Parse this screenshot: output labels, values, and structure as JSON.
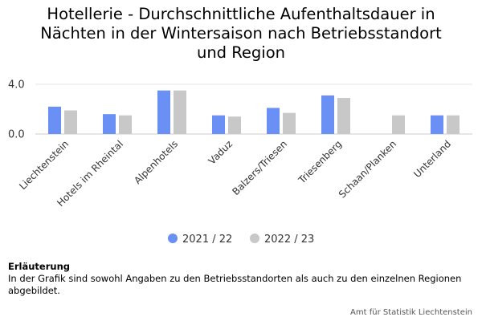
{
  "chart_data": {
    "type": "bar",
    "title_lines": [
      "Hotellerie - Durchschnittliche Aufenthaltsdauer in",
      "Nächten in der Wintersaison nach Betriebsstandort",
      "und Region"
    ],
    "categories": [
      "Liechtenstein",
      "Hotels im Rheintal",
      "Alpenhotels",
      "Vaduz",
      "Balzers/Triesen",
      "Triesenberg",
      "Schaan/Planken",
      "Unterland"
    ],
    "series": [
      {
        "name": "2021 / 22",
        "color": "#6a8ff5",
        "values": [
          2.2,
          1.6,
          3.5,
          1.5,
          2.1,
          3.1,
          null,
          1.5
        ]
      },
      {
        "name": "2022 / 23",
        "color": "#c8c8c8",
        "values": [
          1.9,
          1.5,
          3.5,
          1.4,
          1.7,
          2.9,
          1.5,
          1.5
        ]
      }
    ],
    "yticks": [
      "0.0",
      "4.0"
    ],
    "ylim": [
      0,
      4
    ],
    "grid": true,
    "legend_position": "bottom"
  },
  "note": {
    "title": "Erläuterung",
    "text": "In der Grafik sind sowohl Angaben zu den Betriebsstandorten als auch zu den einzelnen Regionen abgebildet."
  },
  "credit": "Amt für Statistik Liechtenstein"
}
